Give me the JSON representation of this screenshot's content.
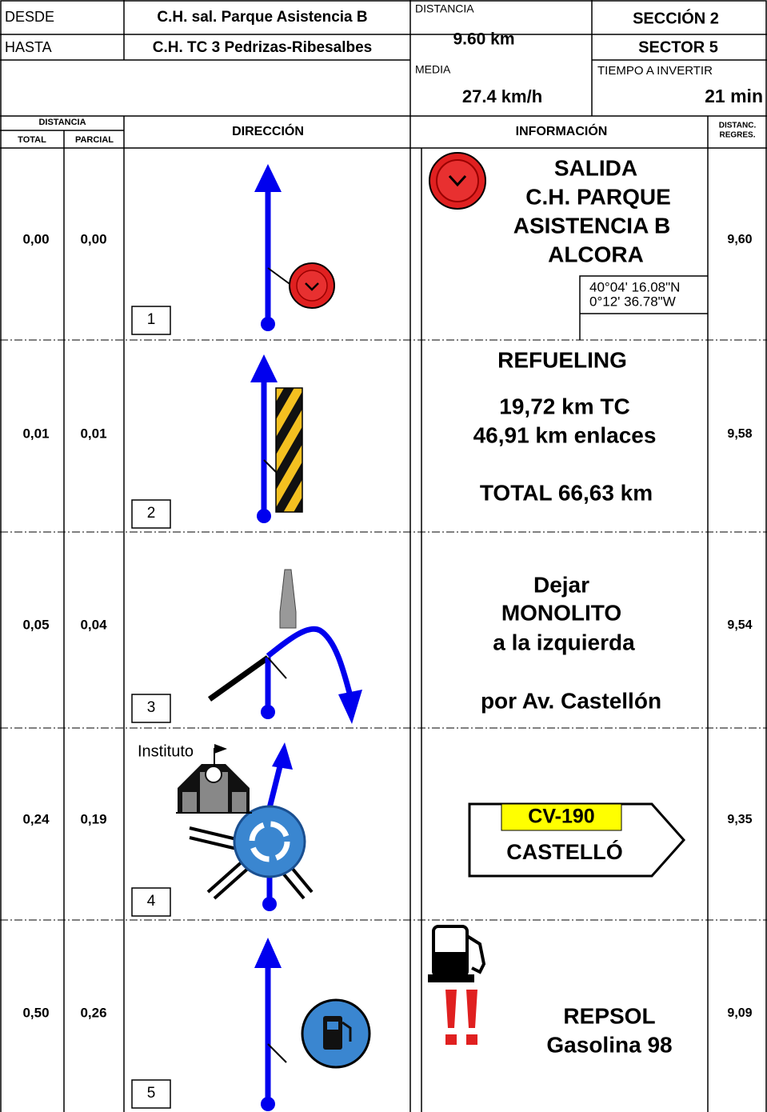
{
  "header": {
    "desde_label": "DESDE",
    "desde": "C.H. sal. Parque Asistencia B",
    "hasta_label": "HASTA",
    "hasta": "C.H. TC 3 Pedrizas-Ribesalbes",
    "distancia_label": "DISTANCIA",
    "distancia": "9.60 km",
    "seccion": "SECCIÓN  2",
    "sector": "SECTOR  5",
    "media_label": "MEDIA",
    "media": "27.4  km/h",
    "tiempo_label": "TIEMPO A INVERTIR",
    "tiempo": "21  min"
  },
  "columns": {
    "distancia": "DISTANCIA",
    "total": "TOTAL",
    "parcial": "PARCIAL",
    "direccion": "DIRECCIÓN",
    "informacion": "INFORMACIÓN",
    "regres": [
      "DISTANC.",
      "REGRES."
    ]
  },
  "rows": [
    {
      "total": "0,00",
      "parcial": "0,00",
      "number": "1",
      "regres": "9,60",
      "info": [
        "SALIDA",
        "C.H. PARQUE",
        "ASISTENCIA B",
        "ALCORA"
      ],
      "coordinates": [
        "40°04' 16.08\"N",
        "0°12' 36.78\"W"
      ]
    },
    {
      "total": "0,01",
      "parcial": "0,01",
      "number": "2",
      "regres": "9,58",
      "info": [
        "REFUELING",
        "19,72 km  TC",
        "46,91 km  enlaces",
        "TOTAL 66,63 km"
      ]
    },
    {
      "total": "0,05",
      "parcial": "0,04",
      "number": "3",
      "regres": "9,54",
      "info": [
        "Dejar",
        "MONOLITO",
        "a la izquierda",
        "por  Av. Castellón"
      ]
    },
    {
      "total": "0,24",
      "parcial": "0,19",
      "number": "4",
      "regres": "9,35",
      "landmark": "Instituto",
      "sign": {
        "road": "CV-190",
        "destination": "CASTELLÓ"
      }
    },
    {
      "total": "0,50",
      "parcial": "0,26",
      "number": "5",
      "regres": "9,09",
      "info": [
        "REPSOL",
        "Gasolina 98"
      ]
    }
  ]
}
